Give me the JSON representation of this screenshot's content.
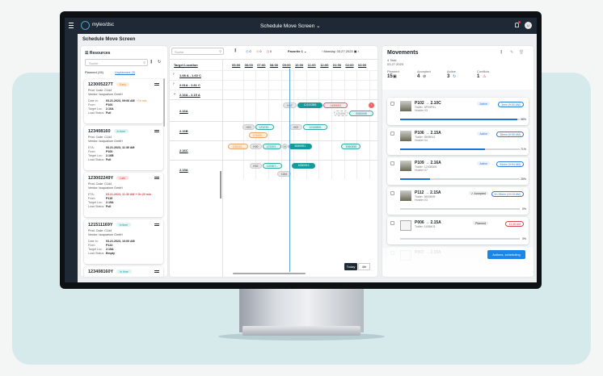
{
  "app": {
    "brand": "myleo/dsc",
    "title": "Schedule Move Screen",
    "page_title": "Schedule Move Screen",
    "user_initial": "U"
  },
  "resources": {
    "title": "Resources",
    "search_placeholder": "Suche",
    "tabs": [
      {
        "label": "Planned (15)"
      },
      {
        "label": "Unplanned (3)"
      }
    ],
    "cards": [
      {
        "id": "123005227T",
        "badge": "Early",
        "badge_type": "early",
        "prod": "Prod. Code: C1A4",
        "vendor": "Vendor: Isoquarium GmbH",
        "rows": [
          [
            "Date In:",
            "03.21.2023, 09:06 AM",
            "+3h min."
          ],
          [
            "From:",
            "P100",
            ""
          ],
          [
            "Target Loc:",
            "2.16A",
            ""
          ],
          [
            "Load Status:",
            "Full",
            ""
          ]
        ]
      },
      {
        "id": "123408160",
        "badge": "In time",
        "badge_type": "ok",
        "prod": "Prod. Code: C1A4",
        "vendor": "Vendor: Isoquarium GmbH",
        "rows": [
          [
            "ETA:",
            "03.21.2023, 11:30 AM",
            ""
          ],
          [
            "From:",
            "P100",
            ""
          ],
          [
            "Target Loc:",
            "2.16B",
            ""
          ],
          [
            "Load Status:",
            "Full",
            ""
          ]
        ]
      },
      {
        "id": "123002249Y",
        "badge": "Late",
        "badge_type": "late",
        "prod": "Prod. Code: C1A4",
        "vendor": "Vendor: Isoquarium GmbH",
        "rows": [
          [
            "ETA:",
            "03.21.2023, 11:30 AM + 0h 20 min",
            ""
          ],
          [
            "From:",
            "P115",
            ""
          ],
          [
            "Target Loc:",
            "2.15A",
            ""
          ],
          [
            "Load Status:",
            "Full",
            ""
          ]
        ]
      },
      {
        "id": "121511169Y",
        "badge": "In time",
        "badge_type": "ok",
        "prod": "Prod. Code: C1A4",
        "vendor": "Vendor: Isoquarium GmbH",
        "rows": [
          [
            "Date In:",
            "03.21.2023, 10:00 AM",
            ""
          ],
          [
            "From:",
            "P122",
            ""
          ],
          [
            "Target Loc:",
            "2.15A",
            ""
          ],
          [
            "Load Status:",
            "Empty",
            ""
          ]
        ]
      },
      {
        "id": "123408160Y",
        "badge": "In time",
        "badge_type": "ok"
      }
    ]
  },
  "gantt": {
    "search_placeholder": "Suche",
    "counts": [
      {
        "value": "0",
        "color": "#2b7bd6"
      },
      {
        "value": "0",
        "color": "#e8893a"
      },
      {
        "value": "0",
        "color": "#d9434a"
      }
    ],
    "favorite": "Favorite 1",
    "date": "Monday, 03.27.2023",
    "column_header": "Target Location",
    "hours": [
      "05:00",
      "06:00",
      "07:00",
      "08:00",
      "09:00",
      "10:00",
      "11:00",
      "12:00",
      "01:00",
      "02:00",
      "03:00"
    ],
    "groups": [
      "1.08 A - 1.60 C",
      "2.01A - 2.81 C",
      "2.16A - 2.15 A"
    ],
    "now_hour": 9.15,
    "rows": [
      {
        "label": "2.16A",
        "bars": [
          {
            "t": "H67",
            "type": "hostler",
            "s": 8.65,
            "e": 9.81
          },
          {
            "t": "12100385",
            "type": "active",
            "s": 9.81,
            "e": 11.86
          },
          {
            "t": "1455663",
            "type": "conflict",
            "s": 11.86,
            "e": 13.85
          },
          {
            "t": "!",
            "type": "conflict-solid",
            "s": 15.45,
            "e": 15.95
          },
          {
            "t": "1234567",
            "type": "ghost",
            "s": 12.7,
            "e": 13.9
          },
          {
            "t": "5060005",
            "type": "planned",
            "s": 13.9,
            "e": 15.9
          }
        ]
      },
      {
        "label": "2.16B",
        "bars": [
          {
            "t": "H01",
            "type": "hostler",
            "s": 5.45,
            "e": 6.5
          },
          {
            "t": "123233...",
            "type": "planned",
            "s": 6.5,
            "e": 8.0
          },
          {
            "t": "123433...",
            "type": "early",
            "s": 5.96,
            "e": 7.5
          },
          {
            "t": "H02",
            "type": "hostler",
            "s": 9.17,
            "e": 10.26
          },
          {
            "t": "12345891",
            "type": "planned",
            "s": 10.26,
            "e": 12.24
          }
        ]
      },
      {
        "label": "2.16C",
        "bars": [
          {
            "t": "128443...",
            "type": "early",
            "s": 4.3,
            "e": 5.96
          },
          {
            "t": "H00",
            "type": "hostler",
            "s": 6.0,
            "e": 7.05
          },
          {
            "t": "123303...",
            "type": "planned",
            "s": 7.05,
            "e": 8.6
          },
          {
            "t": "H",
            "type": "hostler",
            "s": 8.6,
            "e": 9.1
          },
          {
            "t": "5060951",
            "type": "active",
            "s": 9.1,
            "e": 11.0
          },
          {
            "t": "5060555",
            "type": "planned",
            "s": 13.3,
            "e": 14.9
          }
        ]
      },
      {
        "label": "2.15A",
        "bars": [
          {
            "t": "H02",
            "type": "hostler",
            "s": 6.0,
            "e": 7.05
          },
          {
            "t": "122307...",
            "type": "planned",
            "s": 7.05,
            "e": 8.65
          },
          {
            "t": "1184",
            "type": "hostler",
            "s": 8.2,
            "e": 9.36
          },
          {
            "t": "6350913",
            "type": "active",
            "s": 9.36,
            "e": 11.3
          }
        ]
      }
    ],
    "today": "Today",
    "view": "4th"
  },
  "movements": {
    "title": "Movements",
    "tasks": "4 Task",
    "date": "03.27.2023",
    "stats": [
      {
        "label": "Planned",
        "value": "15",
        "icon": "calendar-icon",
        "color": "#333"
      },
      {
        "label": "Accepted",
        "value": "4",
        "icon": "check-circle-icon",
        "color": "#333"
      },
      {
        "label": "Active",
        "value": "3",
        "icon": "refresh-icon",
        "color": "#2b7bd6"
      },
      {
        "label": "Conflicts",
        "value": "1",
        "icon": "warning-icon",
        "color": "#d9434a"
      }
    ],
    "items": [
      {
        "route": "P102 → 2.10C",
        "trailer": "Trailer: 5P09P91",
        "hostler": "Hostler 03",
        "status": "Active",
        "time": "3min (9:50 AM)",
        "progress": 98
      },
      {
        "route": "P106 → 2.15A",
        "trailer": "Trailer: 5698913",
        "hostler": "Hostler 04",
        "status": "Active",
        "time": "36min (9:55 AM)",
        "progress": 71
      },
      {
        "route": "P109 → 2.16A",
        "trailer": "Trailer: 12308305",
        "hostler": "Hostler 07",
        "status": "Active",
        "time": "54min (9:54 AM)",
        "progress": 25
      },
      {
        "route": "P112 → 2.15A",
        "trailer": "Trailer: 5609599",
        "hostler": "Hostler 03",
        "status": "✓ Accepted",
        "time": "1h 25min (10:15 AM)",
        "progress": 0
      },
      {
        "route": "P006 → 2.15A",
        "trailer": "Trailer: 1458403",
        "hostler": "",
        "status": "Planned",
        "time": "11:48 AM",
        "progress": 0
      },
      {
        "route": "P007 → 2.15A",
        "trailer": "",
        "hostler": "",
        "status": "",
        "time": "",
        "progress": null
      }
    ],
    "action": "Actions, scheduling"
  }
}
